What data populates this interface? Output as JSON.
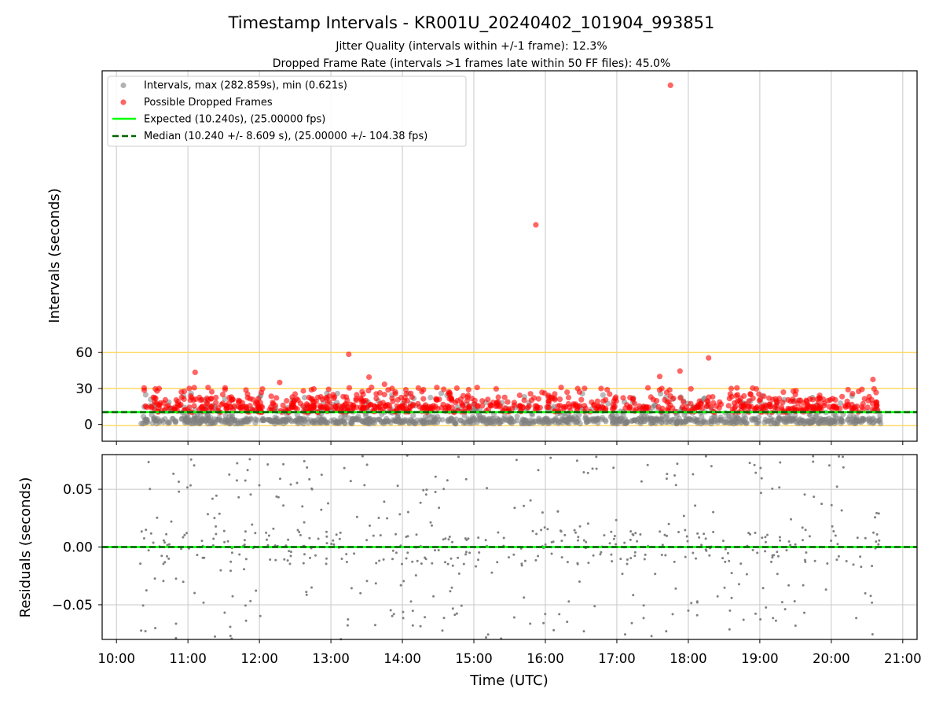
{
  "figure": {
    "title": "Timestamp Intervals - KR001U_20240402_101904_993851",
    "subtitle_1": "Jitter Quality (intervals within +/-1 frame): 12.3%",
    "subtitle_2": "Dropped Frame Rate (intervals >1 frames late within 50 FF files): 45.0%"
  },
  "colors": {
    "intervals": "#808080",
    "dropped": "#ff0000",
    "expected": "#00ff00",
    "median": "#006400",
    "threshold": "#ffd966",
    "grid": "#c8c8c8",
    "residuals": "#808080"
  },
  "chart_data": [
    {
      "type": "scatter",
      "panel": "top",
      "ylabel": "Intervals (seconds)",
      "xlabel": "",
      "x_ticks": [
        "10:00",
        "11:00",
        "12:00",
        "13:00",
        "14:00",
        "15:00",
        "16:00",
        "17:00",
        "18:00",
        "19:00",
        "20:00",
        "21:00"
      ],
      "x_hours": [
        10,
        11,
        12,
        13,
        14,
        15,
        16,
        17,
        18,
        19,
        20,
        21
      ],
      "xlim": [
        "09:48",
        "21:12"
      ],
      "ylim": [
        -14,
        295
      ],
      "y_ticks": [
        0,
        30,
        60
      ],
      "hlines": [
        {
          "name": "threshold",
          "y": -1
        },
        {
          "name": "threshold",
          "y": 30
        },
        {
          "name": "threshold",
          "y": 60
        }
      ],
      "legend_position": "upper-left",
      "legend": [
        {
          "label": "Intervals, max (282.859s), min (0.621s)",
          "marker": "circle",
          "color": "#808080"
        },
        {
          "label": "Possible Dropped Frames",
          "marker": "circle",
          "color": "#ff0000"
        },
        {
          "label": "Expected (10.240s), (25.00000 fps)",
          "marker": "line",
          "color": "#00ff00"
        },
        {
          "label": "Median (10.240 +/- 8.609 s), (25.00000 +/- 104.38 fps)",
          "marker": "dashed-line",
          "color": "#006400"
        }
      ],
      "expected_interval": 10.24,
      "median_interval": 10.24,
      "time_range": [
        "10:20",
        "20:42"
      ],
      "outliers": [
        {
          "time": "17:45",
          "value": 282.9
        },
        {
          "time": "15:52",
          "value": 166.5
        },
        {
          "time": "13:15",
          "value": 58.5
        },
        {
          "time": "18:17",
          "value": 55.5
        },
        {
          "time": "11:06",
          "value": 43.5
        },
        {
          "time": "17:53",
          "value": 44.5
        },
        {
          "time": "17:36",
          "value": 40.0
        },
        {
          "time": "13:32",
          "value": 39.5
        },
        {
          "time": "20:35",
          "value": 37.5
        },
        {
          "time": "13:45",
          "value": 33.5
        },
        {
          "time": "12:17",
          "value": 35.0
        }
      ]
    },
    {
      "type": "scatter",
      "panel": "bottom",
      "ylabel": "Residuals (seconds)",
      "xlabel": "Time (UTC)",
      "ylim": [
        -0.08,
        0.08
      ],
      "y_ticks": [
        -0.05,
        0.0,
        0.05
      ],
      "y_tick_labels": [
        "−0.05",
        "0.00",
        "0.05"
      ],
      "zero_line": 0.0,
      "time_range": [
        "10:20",
        "20:42"
      ]
    }
  ]
}
